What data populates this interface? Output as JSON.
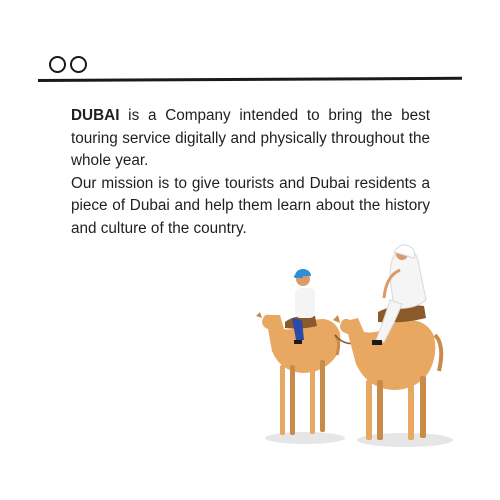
{
  "header": {
    "window_controls": [
      "circle-button",
      "circle-button"
    ]
  },
  "content": {
    "brand": "DUBAI",
    "paragraph1_rest": " is a Company intended to bring the best touring service digitally and physically throughout the whole year.",
    "paragraph2": "Our mission is to give tourists and Dubai residents a piece of Dubai and help them learn about the history and culture of the country."
  },
  "colors": {
    "camel": "#e8a862",
    "camel_shadow": "#c98a4a",
    "ink": "#1a1a1a",
    "ground_shadow": "#e6e6e6"
  }
}
